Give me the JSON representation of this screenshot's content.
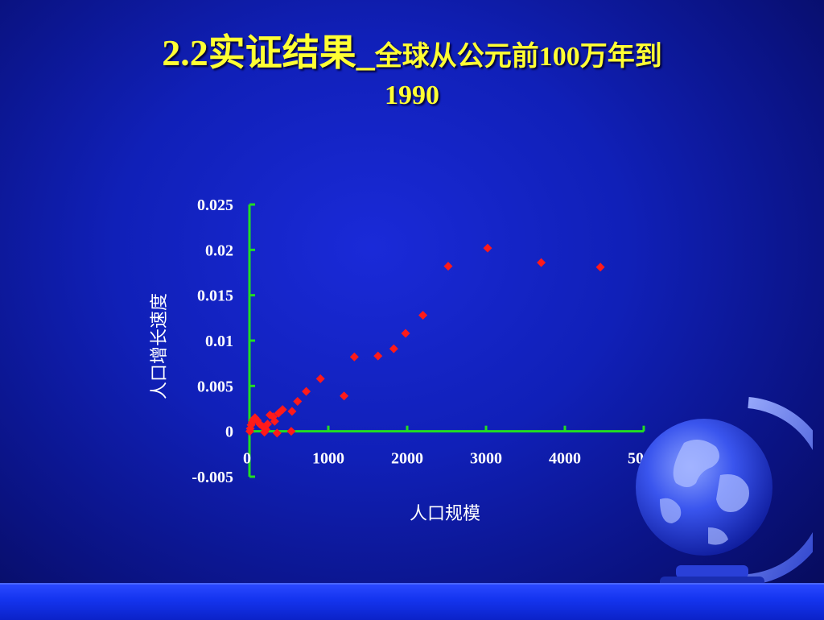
{
  "slide": {
    "title_main": "2.2实证结果_",
    "title_sub": "全球从公元前100万年到",
    "title_year": "1990"
  },
  "colors": {
    "background": "#1020b8",
    "title": "#ffff33",
    "axis": "#22dd22",
    "points": "#ff1a1a",
    "text": "#ffffff"
  },
  "chart_data": {
    "type": "scatter",
    "title": "",
    "xlabel": "人口规模",
    "ylabel": "人口增长速度",
    "xlim": [
      0,
      5000
    ],
    "ylim": [
      -0.005,
      0.025
    ],
    "x_ticks": [
      "0",
      "1000",
      "2000",
      "3000",
      "4000",
      "5000"
    ],
    "y_ticks": [
      "-0.005",
      "0",
      "0.005",
      "0.01",
      "0.015",
      "0.02",
      "0.025"
    ],
    "grid": false,
    "legend": "none",
    "series": [
      {
        "points": [
          [
            5,
            0.0
          ],
          [
            10,
            0.0003
          ],
          [
            20,
            0.0007
          ],
          [
            35,
            0.001
          ],
          [
            50,
            0.0013
          ],
          [
            70,
            0.0015
          ],
          [
            100,
            0.0012
          ],
          [
            130,
            0.0008
          ],
          [
            170,
            0.0005
          ],
          [
            190,
            -0.0001
          ],
          [
            210,
            0.0002
          ],
          [
            230,
            0.0008
          ],
          [
            260,
            0.0018
          ],
          [
            300,
            0.0016
          ],
          [
            320,
            0.0011
          ],
          [
            350,
            -0.0002
          ],
          [
            370,
            0.002
          ],
          [
            420,
            0.0024
          ],
          [
            530,
            0.0
          ],
          [
            540,
            0.0022
          ],
          [
            610,
            0.0033
          ],
          [
            720,
            0.0044
          ],
          [
            900,
            0.0058
          ],
          [
            1200,
            0.0039
          ],
          [
            1330,
            0.0082
          ],
          [
            1630,
            0.0083
          ],
          [
            1830,
            0.0091
          ],
          [
            1980,
            0.0108
          ],
          [
            2200,
            0.0128
          ],
          [
            2520,
            0.0182
          ],
          [
            3020,
            0.0202
          ],
          [
            3700,
            0.0186
          ],
          [
            4450,
            0.0181
          ]
        ]
      }
    ]
  }
}
